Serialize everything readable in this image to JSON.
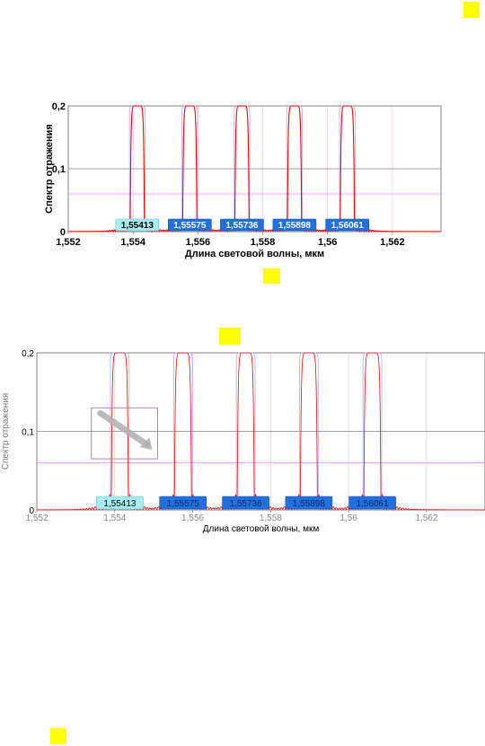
{
  "markers": [
    {
      "name": "yellow-marker-top-right"
    },
    {
      "name": "yellow-marker-between-charts"
    },
    {
      "name": "yellow-marker-above-chart-2"
    },
    {
      "name": "yellow-marker-bottom-left"
    }
  ],
  "colors": {
    "curve": "#ff0000",
    "envelope": "#aaaaff",
    "pink_line": "#ff88ff",
    "label_dark": "#2070e0",
    "label_light": "#a8eef0",
    "frame": "#808080",
    "grid": "#cccccc",
    "marker": "#ffff00"
  },
  "chart_data": [
    {
      "type": "line",
      "title": "",
      "xlabel": "Длина световой волны, мкм",
      "ylabel": "Спектр отражения",
      "xlim": [
        1.552,
        1.5635
      ],
      "ylim": [
        0,
        0.2
      ],
      "xticks": [
        {
          "value": 1.552,
          "label": "1,552"
        },
        {
          "value": 1.554,
          "label": "1,554"
        },
        {
          "value": 1.556,
          "label": "1,556"
        },
        {
          "value": 1.558,
          "label": "1,558"
        },
        {
          "value": 1.56,
          "label": "1,56"
        },
        {
          "value": 1.562,
          "label": "1,562"
        }
      ],
      "yticks": [
        {
          "value": 0,
          "label": "0"
        },
        {
          "value": 0.1,
          "label": "0,1"
        },
        {
          "value": 0.2,
          "label": "0,2"
        }
      ],
      "hline_pink": 0.06,
      "peaks": [
        1.55413,
        1.55575,
        1.55736,
        1.55898,
        1.56061
      ],
      "peak_labels": [
        {
          "text": "1,55413",
          "style": "light"
        },
        {
          "text": "1,55575",
          "style": "dark"
        },
        {
          "text": "1,55736",
          "style": "dark"
        },
        {
          "text": "1,55898",
          "style": "dark"
        },
        {
          "text": "1,56061",
          "style": "dark"
        }
      ],
      "peak_height": 0.2
    },
    {
      "type": "line",
      "title": "",
      "xlabel": "Длина световой волны, мкм",
      "ylabel": "Спектр отражения",
      "xlim": [
        1.552,
        1.5635
      ],
      "ylim": [
        0,
        0.2
      ],
      "xticks": [
        {
          "value": 1.552,
          "label": "1,552"
        },
        {
          "value": 1.554,
          "label": "1,554"
        },
        {
          "value": 1.556,
          "label": "1,556"
        },
        {
          "value": 1.558,
          "label": "1,558"
        },
        {
          "value": 1.56,
          "label": "1,56"
        },
        {
          "value": 1.562,
          "label": "1,562"
        }
      ],
      "yticks": [
        {
          "value": 0,
          "label": "0"
        },
        {
          "value": 0.1,
          "label": "0,1"
        },
        {
          "value": 0.2,
          "label": "0,2"
        }
      ],
      "hline_pink": 0.06,
      "peaks": [
        1.55413,
        1.55575,
        1.55736,
        1.55898,
        1.56061
      ],
      "peak_labels": [
        {
          "text": "1,55413",
          "style": "light"
        },
        {
          "text": "1,55575",
          "style": "dark"
        },
        {
          "text": "1,55736",
          "style": "dark"
        },
        {
          "text": "1,55898",
          "style": "dark"
        },
        {
          "text": "1,56061",
          "style": "dark"
        }
      ],
      "peak_height": 0.2,
      "highlight_box": {
        "x": [
          1.5534,
          1.5551
        ],
        "y": [
          0.065,
          0.13
        ]
      }
    }
  ]
}
